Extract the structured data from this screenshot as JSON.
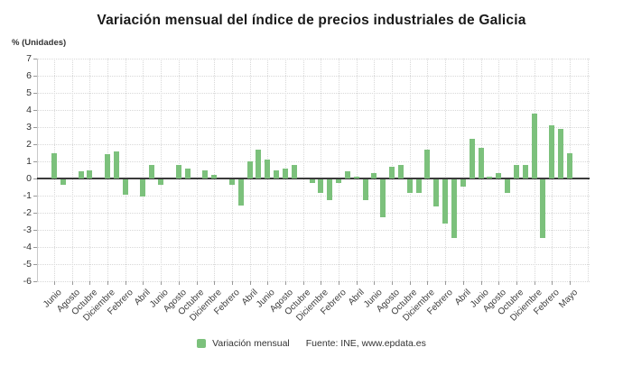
{
  "title": "Variación mensual del índice de precios industriales de Galicia",
  "y_axis_caption": "% (Unidades)",
  "legend": {
    "label": "Variación mensual",
    "source": "Fuente: INE, www.epdata.es"
  },
  "colors": {
    "bar": "#7cc17c",
    "zero_line": "#3a3a3a",
    "grid": "#d8d8d8",
    "text": "#333333",
    "background": "#ffffff"
  },
  "chart_data": {
    "type": "bar",
    "title": "Variación mensual del índice de precios industriales de Galicia",
    "xlabel": "",
    "ylabel": "% (Unidades)",
    "ylim": [
      -6,
      7
    ],
    "y_ticks": [
      7,
      6,
      5,
      4,
      3,
      2,
      1,
      0,
      -1,
      -2,
      -3,
      -4,
      -5,
      -6
    ],
    "grid": true,
    "legend_position": "bottom",
    "series_name": "Variación mensual",
    "values": [
      1.5,
      -0.3,
      0,
      0.4,
      0.5,
      0,
      1.4,
      1.6,
      -0.9,
      0,
      -1.0,
      0.8,
      -0.3,
      0,
      0.8,
      0.6,
      0,
      0.5,
      0.2,
      0,
      -0.3,
      -1.5,
      1.0,
      1.7,
      1.1,
      0.5,
      0.6,
      0.8,
      0,
      -0.2,
      -0.8,
      -1.2,
      -0.2,
      0.4,
      0.1,
      -1.2,
      0.3,
      -2.2,
      0.7,
      0.8,
      -0.8,
      -0.8,
      1.7,
      -1.6,
      -2.6,
      -3.4,
      -0.4,
      2.3,
      1.8,
      0.1,
      0.3,
      -0.8,
      0.8,
      0.8,
      3.8,
      -3.4,
      3.1,
      2.9,
      1.5
    ],
    "x_tick_labels": [
      "Junio",
      "Agosto",
      "Octubre",
      "Diciembre",
      "Febrero",
      "Abril",
      "Junio",
      "Agosto",
      "Octubre",
      "Diciembre",
      "Febrero",
      "Abril",
      "Junio",
      "Agosto",
      "Octubre",
      "Diciembre",
      "Febrero",
      "Abril",
      "Junio",
      "Agosto",
      "Octubre",
      "Diciembre",
      "Febrero",
      "Abril",
      "Junio",
      "Agosto",
      "Octubre",
      "Diciembre",
      "Febrero",
      "Mayo"
    ],
    "x_tick_every": 2,
    "source": "Fuente: INE, www.epdata.es"
  }
}
